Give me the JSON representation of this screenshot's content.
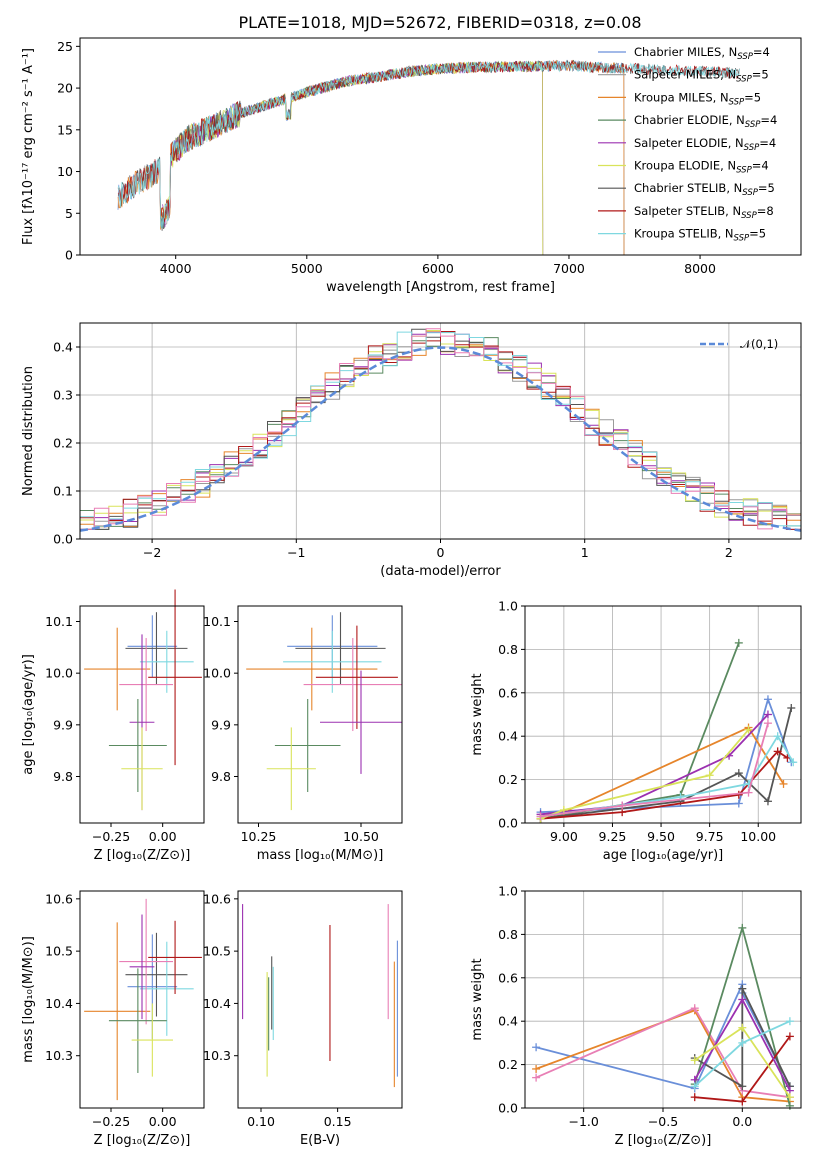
{
  "figure": {
    "title": "PLATE=1018, MJD=52672, FIBERID=0318, z=0.08"
  },
  "model_colors": [
    "#6a8fd9",
    "#9a9a9a",
    "#e6852b",
    "#5a8a60",
    "#9b30b0",
    "#d9e35a",
    "#555555",
    "#b01818",
    "#7fd8e0",
    "#e87fb5"
  ],
  "chart_data": [
    {
      "id": "spectrum",
      "type": "line",
      "title": "PLATE=1018, MJD=52672, FIBERID=0318, z=0.08",
      "xlabel": "wavelength [Angstrom, rest frame]",
      "ylabel": "Flux [fλ10⁻¹⁷ erg cm⁻² s⁻¹ A⁻¹]",
      "xlim": [
        3270,
        8770
      ],
      "ylim": [
        0,
        26
      ],
      "xticks": [
        4000,
        5000,
        6000,
        7000,
        8000
      ],
      "yticks": [
        0,
        5,
        10,
        15,
        20,
        25
      ],
      "grid": false,
      "legend_position": "upper-right",
      "continuum": {
        "x": [
          3560,
          3700,
          3900,
          4000,
          4100,
          4300,
          4500,
          4800,
          5000,
          5300,
          5600,
          5800,
          6000,
          6300,
          6600,
          6800,
          7000,
          7200,
          7400,
          7700,
          8000,
          8300
        ],
        "y": [
          7,
          8.5,
          10.5,
          12.5,
          14,
          15.5,
          17,
          18.5,
          19.5,
          20.8,
          21.5,
          22,
          22.3,
          22.5,
          22.6,
          22.6,
          22.7,
          22.5,
          22.4,
          22.2,
          22,
          21.8
        ]
      },
      "series": [
        {
          "name": "Chabrier MILES, N_SSP=4",
          "color": "#6a8fd9",
          "x_min": 3560,
          "x_max": 7420
        },
        {
          "name": "Salpeter MILES, N_SSP=5",
          "color": "#9a9a9a",
          "x_min": 3560,
          "x_max": 7420
        },
        {
          "name": "Kroupa MILES, N_SSP=5",
          "color": "#e6852b",
          "x_min": 3560,
          "x_max": 7420
        },
        {
          "name": "Chabrier ELODIE, N_SSP=4",
          "color": "#5a8a60",
          "x_min": 3900,
          "x_max": 6800
        },
        {
          "name": "Salpeter ELODIE, N_SSP=4",
          "color": "#9b30b0",
          "x_min": 3900,
          "x_max": 6800
        },
        {
          "name": "Kroupa ELODIE, N_SSP=4",
          "color": "#d9e35a",
          "x_min": 3900,
          "x_max": 6800
        },
        {
          "name": "Chabrier STELIB, N_SSP=5",
          "color": "#555555",
          "x_min": 3560,
          "x_max": 8300
        },
        {
          "name": "Salpeter STELIB, N_SSP=8",
          "color": "#b01818",
          "x_min": 3560,
          "x_max": 8300
        },
        {
          "name": "Kroupa STELIB, N_SSP=5",
          "color": "#7fd8e0",
          "x_min": 3560,
          "x_max": 8300
        }
      ]
    },
    {
      "id": "residuals",
      "type": "bar",
      "xlabel": "(data-model)/error",
      "ylabel": "Normed distribution",
      "xlim": [
        -2.5,
        2.5
      ],
      "ylim": [
        0,
        0.45
      ],
      "xticks": [
        -2,
        -1,
        0,
        1,
        2
      ],
      "yticks": [
        0.0,
        0.1,
        0.2,
        0.3,
        0.4
      ],
      "grid": true,
      "reference_curve": {
        "name": "𝒩(0,1)",
        "mean": 0,
        "sigma": 1
      },
      "legend_position": "upper-right",
      "bin_width": 0.1,
      "note": "step histograms, one per model"
    },
    {
      "id": "age_vs_Z",
      "type": "scatter",
      "xlabel": "Z [log₁₀(Z/Z⊙)]",
      "ylabel": "age  [log₁₀(age/yr)]",
      "xlim": [
        -0.4,
        0.2
      ],
      "ylim": [
        9.71,
        10.13
      ],
      "xticks": [
        -0.25,
        0.0
      ],
      "yticks": [
        9.8,
        9.9,
        10.0,
        10.1
      ],
      "points": [
        {
          "x": -0.05,
          "y": 10.052,
          "xerr": 0.12,
          "yerr": 0.06,
          "color": "#6a8fd9"
        },
        {
          "x": -0.22,
          "y": 10.008,
          "xerr": 0.16,
          "yerr": 0.08,
          "color": "#e6852b"
        },
        {
          "x": -0.03,
          "y": 10.048,
          "xerr": 0.15,
          "yerr": 0.07,
          "color": "#555555"
        },
        {
          "x": 0.02,
          "y": 10.022,
          "xerr": 0.13,
          "yerr": 0.06,
          "color": "#7fd8e0"
        },
        {
          "x": -0.08,
          "y": 9.978,
          "xerr": 0.13,
          "yerr": 0.09,
          "color": "#e87fb5"
        },
        {
          "x": 0.06,
          "y": 9.992,
          "xerr": 0.13,
          "yerr": 0.17,
          "color": "#b01818"
        },
        {
          "x": -0.1,
          "y": 9.905,
          "xerr": 0.06,
          "yerr": 0.17,
          "color": "#9b30b0"
        },
        {
          "x": -0.12,
          "y": 9.86,
          "xerr": 0.14,
          "yerr": 0.09,
          "color": "#5a8a60"
        },
        {
          "x": -0.1,
          "y": 9.815,
          "xerr": 0.1,
          "yerr": 0.08,
          "color": "#d9e35a"
        }
      ]
    },
    {
      "id": "age_vs_mass",
      "type": "scatter",
      "xlabel": "mass [log₁₀(M/M⊙)]",
      "ylabel": "",
      "xlim": [
        10.2,
        10.6
      ],
      "ylim": [
        9.71,
        10.13
      ],
      "xticks": [
        10.25,
        10.5
      ],
      "yticks": [
        9.8,
        9.9,
        10.0,
        10.1
      ],
      "points": [
        {
          "x": 10.43,
          "y": 10.052,
          "xerr": 0.11,
          "yerr": 0.06,
          "color": "#6a8fd9"
        },
        {
          "x": 10.38,
          "y": 10.008,
          "xerr": 0.16,
          "yerr": 0.08,
          "color": "#e6852b"
        },
        {
          "x": 10.45,
          "y": 10.048,
          "xerr": 0.11,
          "yerr": 0.07,
          "color": "#555555"
        },
        {
          "x": 10.43,
          "y": 10.022,
          "xerr": 0.12,
          "yerr": 0.06,
          "color": "#7fd8e0"
        },
        {
          "x": 10.48,
          "y": 9.978,
          "xerr": 0.12,
          "yerr": 0.09,
          "color": "#e87fb5"
        },
        {
          "x": 10.49,
          "y": 9.992,
          "xerr": 0.1,
          "yerr": 0.1,
          "color": "#b01818"
        },
        {
          "x": 10.5,
          "y": 9.905,
          "xerr": 0.1,
          "yerr": 0.1,
          "color": "#9b30b0"
        },
        {
          "x": 10.37,
          "y": 9.86,
          "xerr": 0.08,
          "yerr": 0.09,
          "color": "#5a8a60"
        },
        {
          "x": 10.33,
          "y": 9.815,
          "xerr": 0.06,
          "yerr": 0.08,
          "color": "#d9e35a"
        }
      ]
    },
    {
      "id": "weight_vs_age",
      "type": "line",
      "xlabel": "age  [log₁₀(age/yr)]",
      "ylabel": "mass weight",
      "xlim": [
        8.8,
        10.22
      ],
      "ylim": [
        0.0,
        1.0
      ],
      "xticks": [
        9.0,
        9.25,
        9.5,
        9.75,
        10.0
      ],
      "yticks": [
        0.0,
        0.2,
        0.4,
        0.6,
        0.8,
        1.0
      ],
      "grid": true,
      "series": [
        {
          "color": "#5a8a60",
          "x": [
            8.88,
            9.6,
            9.9
          ],
          "y": [
            0.02,
            0.13,
            0.83
          ]
        },
        {
          "color": "#6a8fd9",
          "x": [
            8.88,
            9.9,
            10.05,
            10.17
          ],
          "y": [
            0.05,
            0.09,
            0.57,
            0.28
          ]
        },
        {
          "color": "#e6852b",
          "x": [
            8.88,
            9.0,
            9.95,
            10.13
          ],
          "y": [
            0.03,
            0.05,
            0.44,
            0.18
          ]
        },
        {
          "color": "#9b30b0",
          "x": [
            8.88,
            9.3,
            9.85,
            10.05
          ],
          "y": [
            0.04,
            0.08,
            0.31,
            0.5
          ]
        },
        {
          "color": "#555555",
          "x": [
            8.88,
            9.6,
            9.9,
            10.05,
            10.17
          ],
          "y": [
            0.02,
            0.1,
            0.23,
            0.1,
            0.53
          ]
        },
        {
          "color": "#b01818",
          "x": [
            8.88,
            9.3,
            9.9,
            10.1,
            10.15
          ],
          "y": [
            0.02,
            0.05,
            0.13,
            0.33,
            0.3
          ]
        },
        {
          "color": "#d9e35a",
          "x": [
            8.88,
            9.0,
            9.75,
            9.95
          ],
          "y": [
            0.02,
            0.06,
            0.22,
            0.43
          ]
        },
        {
          "color": "#7fd8e0",
          "x": [
            8.88,
            9.6,
            9.95,
            10.1,
            10.18
          ],
          "y": [
            0.03,
            0.12,
            0.18,
            0.4,
            0.28
          ]
        },
        {
          "color": "#e87fb5",
          "x": [
            8.88,
            9.3,
            9.95,
            10.05
          ],
          "y": [
            0.03,
            0.08,
            0.14,
            0.46
          ]
        }
      ]
    },
    {
      "id": "mass_vs_Z",
      "type": "scatter",
      "xlabel": "Z [log₁₀(Z/Z⊙)]",
      "ylabel": "mass [log₁₀(M/M⊙)]",
      "xlim": [
        -0.4,
        0.2
      ],
      "ylim": [
        10.2,
        10.615
      ],
      "xticks": [
        -0.25,
        0.0
      ],
      "yticks": [
        10.3,
        10.4,
        10.5,
        10.6
      ],
      "points": [
        {
          "x": -0.05,
          "y": 10.432,
          "xerr": 0.12,
          "yerr": 0.1,
          "color": "#6a8fd9"
        },
        {
          "x": -0.22,
          "y": 10.385,
          "xerr": 0.16,
          "yerr": 0.17,
          "color": "#e6852b"
        },
        {
          "x": -0.03,
          "y": 10.455,
          "xerr": 0.15,
          "yerr": 0.08,
          "color": "#555555"
        },
        {
          "x": 0.02,
          "y": 10.428,
          "xerr": 0.13,
          "yerr": 0.09,
          "color": "#7fd8e0"
        },
        {
          "x": -0.08,
          "y": 10.48,
          "xerr": 0.13,
          "yerr": 0.12,
          "color": "#e87fb5"
        },
        {
          "x": 0.06,
          "y": 10.488,
          "xerr": 0.13,
          "yerr": 0.07,
          "color": "#b01818"
        },
        {
          "x": -0.1,
          "y": 10.47,
          "xerr": 0.06,
          "yerr": 0.1,
          "color": "#9b30b0"
        },
        {
          "x": -0.12,
          "y": 10.367,
          "xerr": 0.14,
          "yerr": 0.1,
          "color": "#5a8a60"
        },
        {
          "x": -0.05,
          "y": 10.33,
          "xerr": 0.1,
          "yerr": 0.07,
          "color": "#d9e35a"
        }
      ]
    },
    {
      "id": "mass_vs_ebv",
      "type": "scatter",
      "xlabel": "E(B-V)",
      "ylabel": "",
      "xlim": [
        0.085,
        0.192
      ],
      "ylim": [
        10.2,
        10.615
      ],
      "xticks": [
        0.1,
        0.15
      ],
      "yticks": [
        10.3,
        10.4,
        10.5,
        10.6
      ],
      "points": [
        {
          "x": 0.088,
          "y": 10.48,
          "yerr": 0.11,
          "color": "#9b30b0"
        },
        {
          "x": 0.104,
          "y": 10.36,
          "yerr": 0.1,
          "color": "#d9e35a"
        },
        {
          "x": 0.105,
          "y": 10.38,
          "yerr": 0.07,
          "color": "#5a8a60"
        },
        {
          "x": 0.107,
          "y": 10.42,
          "yerr": 0.07,
          "color": "#555555"
        },
        {
          "x": 0.108,
          "y": 10.4,
          "yerr": 0.07,
          "color": "#7fd8e0"
        },
        {
          "x": 0.145,
          "y": 10.42,
          "yerr": 0.13,
          "color": "#b01818"
        },
        {
          "x": 0.183,
          "y": 10.48,
          "yerr": 0.11,
          "color": "#e87fb5"
        },
        {
          "x": 0.187,
          "y": 10.36,
          "yerr": 0.12,
          "color": "#e6852b"
        },
        {
          "x": 0.189,
          "y": 10.39,
          "yerr": 0.13,
          "color": "#6a8fd9"
        }
      ]
    },
    {
      "id": "weight_vs_Z",
      "type": "line",
      "xlabel": "Z [log₁₀(Z/Z⊙)]",
      "ylabel": "mass weight",
      "xlim": [
        -1.37,
        0.37
      ],
      "ylim": [
        0.0,
        1.0
      ],
      "xticks": [
        -1.0,
        -0.5,
        0.0
      ],
      "yticks": [
        0.0,
        0.2,
        0.4,
        0.6,
        0.8,
        1.0
      ],
      "grid": true,
      "series": [
        {
          "color": "#6a8fd9",
          "x": [
            -1.3,
            -0.3,
            0.0,
            0.0,
            0.3
          ],
          "y": [
            0.28,
            0.09,
            0.57,
            0.53,
            0.1
          ]
        },
        {
          "color": "#e6852b",
          "x": [
            -1.3,
            -0.3,
            0.0,
            0.3
          ],
          "y": [
            0.18,
            0.45,
            0.05,
            0.03
          ]
        },
        {
          "color": "#e87fb5",
          "x": [
            -1.3,
            -0.3,
            0.0,
            0.3
          ],
          "y": [
            0.14,
            0.46,
            0.08,
            0.05
          ]
        },
        {
          "color": "#5a8a60",
          "x": [
            -0.3,
            0.0,
            0.3
          ],
          "y": [
            0.11,
            0.83,
            0.01
          ]
        },
        {
          "color": "#555555",
          "x": [
            -0.3,
            0.0,
            0.0,
            0.3
          ],
          "y": [
            0.23,
            0.1,
            0.55,
            0.1
          ]
        },
        {
          "color": "#b01818",
          "x": [
            -0.3,
            0.0,
            0.3
          ],
          "y": [
            0.05,
            0.03,
            0.33
          ]
        },
        {
          "color": "#9b30b0",
          "x": [
            -0.3,
            0.0,
            0.3
          ],
          "y": [
            0.13,
            0.5,
            0.08
          ]
        },
        {
          "color": "#d9e35a",
          "x": [
            -0.3,
            0.0,
            0.3
          ],
          "y": [
            0.22,
            0.37,
            0.05
          ]
        },
        {
          "color": "#7fd8e0",
          "x": [
            -0.3,
            0.0,
            0.3
          ],
          "y": [
            0.1,
            0.3,
            0.4
          ]
        }
      ]
    }
  ]
}
